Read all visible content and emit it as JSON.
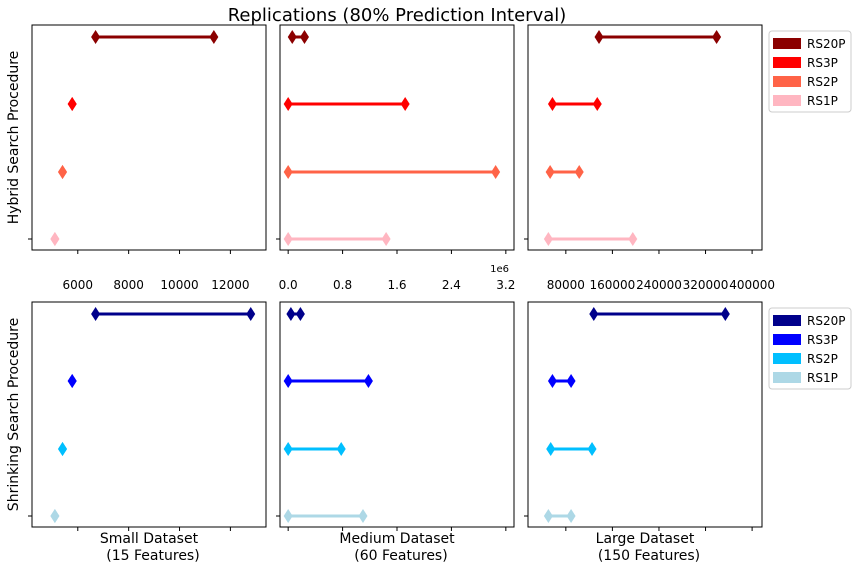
{
  "title": "Replications (80% Prediction Interval)",
  "row_labels": [
    "Hybrid Search Procedure",
    "Shrinking Search Procedure"
  ],
  "column_labels": [
    [
      "Small Dataset",
      "(15 Features)"
    ],
    [
      "Medium Dataset",
      "(60 Features)"
    ],
    [
      "Large Dataset",
      "(150 Features)"
    ]
  ],
  "legends": [
    {
      "row": 0,
      "items": [
        {
          "label": "RS20P",
          "color": "#8b0000"
        },
        {
          "label": "RS3P",
          "color": "#ff0000"
        },
        {
          "label": "RS2P",
          "color": "#ff6347"
        },
        {
          "label": "RS1P",
          "color": "#ffb6c1"
        }
      ]
    },
    {
      "row": 1,
      "items": [
        {
          "label": "RS20P",
          "color": "#00008b"
        },
        {
          "label": "RS3P",
          "color": "#0000ff"
        },
        {
          "label": "RS2P",
          "color": "#00bfff"
        },
        {
          "label": "RS1P",
          "color": "#add8e6"
        }
      ]
    }
  ],
  "chart_data": [
    {
      "type": "interval",
      "row": 0,
      "col": 0,
      "xlim": [
        4200,
        13400
      ],
      "xticks": [
        6000,
        8000,
        10000,
        12000
      ],
      "xtick_labels": [
        "6000",
        "8000",
        "10000",
        "12000"
      ],
      "offset_label": "",
      "series": [
        {
          "name": "RS20P",
          "low": 6700,
          "high": 11350
        },
        {
          "name": "RS3P",
          "low": 5780,
          "high": 5780
        },
        {
          "name": "RS2P",
          "low": 5400,
          "high": 5400
        },
        {
          "name": "RS1P",
          "low": 5100,
          "high": 5100
        }
      ]
    },
    {
      "type": "interval",
      "row": 0,
      "col": 1,
      "xlim": [
        -120000,
        3320000
      ],
      "xticks": [
        0,
        800000,
        1600000,
        2400000,
        3200000
      ],
      "xtick_labels": [
        "0.0",
        "0.8",
        "1.6",
        "2.4",
        "3.2"
      ],
      "offset_label": "1e6",
      "series": [
        {
          "name": "RS20P",
          "low": 60000,
          "high": 240000
        },
        {
          "name": "RS3P",
          "low": 0,
          "high": 1720000
        },
        {
          "name": "RS2P",
          "low": 0,
          "high": 3050000
        },
        {
          "name": "RS1P",
          "low": 0,
          "high": 1440000
        }
      ]
    },
    {
      "type": "interval",
      "row": 0,
      "col": 2,
      "xlim": [
        15000,
        417000
      ],
      "xticks": [
        80000,
        160000,
        240000,
        320000,
        400000
      ],
      "xtick_labels": [
        "80000",
        "160000",
        "240000",
        "320000",
        "400000"
      ],
      "offset_label": "",
      "series": [
        {
          "name": "RS20P",
          "low": 137000,
          "high": 339000
        },
        {
          "name": "RS3P",
          "low": 57000,
          "high": 134000
        },
        {
          "name": "RS2P",
          "low": 53000,
          "high": 103000
        },
        {
          "name": "RS1P",
          "low": 50000,
          "high": 195000
        }
      ]
    },
    {
      "type": "interval",
      "row": 1,
      "col": 0,
      "xlim": [
        4200,
        13400
      ],
      "xticks": [
        6000,
        8000,
        10000,
        12000
      ],
      "xtick_labels": [
        "6000",
        "8000",
        "10000",
        "12000"
      ],
      "offset_label": "",
      "series": [
        {
          "name": "RS20P",
          "low": 6700,
          "high": 12800
        },
        {
          "name": "RS3P",
          "low": 5780,
          "high": 5780
        },
        {
          "name": "RS2P",
          "low": 5400,
          "high": 5400
        },
        {
          "name": "RS1P",
          "low": 5100,
          "high": 5100
        }
      ]
    },
    {
      "type": "interval",
      "row": 1,
      "col": 1,
      "xlim": [
        -120000,
        3320000
      ],
      "xticks": [
        0,
        800000,
        1600000,
        2400000,
        3200000
      ],
      "xtick_labels": [
        "0.0",
        "0.8",
        "1.6",
        "2.4",
        "3.2"
      ],
      "offset_label": "1e6",
      "series": [
        {
          "name": "RS20P",
          "low": 40000,
          "high": 180000
        },
        {
          "name": "RS3P",
          "low": 0,
          "high": 1180000
        },
        {
          "name": "RS2P",
          "low": 0,
          "high": 780000
        },
        {
          "name": "RS1P",
          "low": 0,
          "high": 1100000
        }
      ]
    },
    {
      "type": "interval",
      "row": 1,
      "col": 2,
      "xlim": [
        15000,
        417000
      ],
      "xticks": [
        80000,
        160000,
        240000,
        320000,
        400000
      ],
      "xtick_labels": [
        "80000",
        "160000",
        "240000",
        "320000",
        "400000"
      ],
      "offset_label": "",
      "series": [
        {
          "name": "RS20P",
          "low": 128000,
          "high": 354000
        },
        {
          "name": "RS3P",
          "low": 57000,
          "high": 89000
        },
        {
          "name": "RS2P",
          "low": 54000,
          "high": 125000
        },
        {
          "name": "RS1P",
          "low": 50000,
          "high": 89000
        }
      ]
    }
  ]
}
